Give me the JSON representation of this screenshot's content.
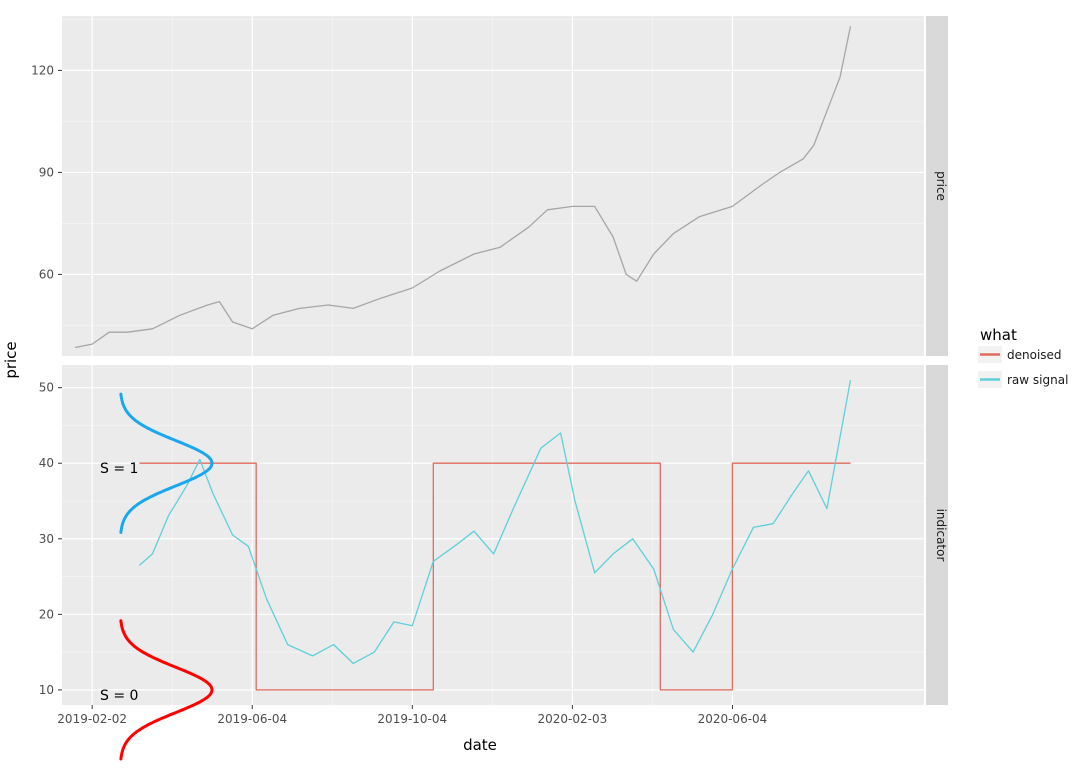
{
  "chart_data": {
    "type": "line",
    "xlabel": "date",
    "ylabel": "price",
    "x_ticks": [
      "2019-02-02",
      "2019-06-04",
      "2019-10-04",
      "2020-02-03",
      "2020-06-04"
    ],
    "xlim": [
      "2019-01-10",
      "2020-10-28"
    ],
    "grid": true,
    "legend": {
      "title": "what",
      "placement": "right",
      "entries": [
        {
          "label": "denoised",
          "color": "#e06b5f"
        },
        {
          "label": "raw signal",
          "color": "#5fcfda"
        }
      ]
    },
    "panels": [
      {
        "strip": "price",
        "ylim": [
          36,
          136
        ],
        "y_ticks": [
          60,
          90,
          120
        ],
        "series": [
          {
            "color": "#a6a6a6",
            "x": [
              "2019-01-20",
              "2019-02-02",
              "2019-02-15",
              "2019-03-01",
              "2019-03-20",
              "2019-04-10",
              "2019-05-01",
              "2019-05-10",
              "2019-05-20",
              "2019-06-04",
              "2019-06-20",
              "2019-07-10",
              "2019-08-01",
              "2019-08-20",
              "2019-09-10",
              "2019-10-04",
              "2019-10-25",
              "2019-11-20",
              "2019-12-10",
              "2020-01-01",
              "2020-01-15",
              "2020-02-03",
              "2020-02-20",
              "2020-03-05",
              "2020-03-15",
              "2020-03-23",
              "2020-04-05",
              "2020-04-20",
              "2020-05-10",
              "2020-06-04",
              "2020-06-25",
              "2020-07-10",
              "2020-07-28",
              "2020-08-05",
              "2020-08-15",
              "2020-08-25",
              "2020-09-02"
            ],
            "y": [
              38.5,
              39.5,
              43,
              43,
              44,
              48,
              51,
              52,
              46,
              44,
              48,
              50,
              51,
              50,
              53,
              56,
              61,
              66,
              68,
              74,
              79,
              80,
              80,
              71,
              60,
              58,
              66,
              72,
              77,
              80,
              86,
              90,
              94,
              98,
              108,
              118,
              133
            ]
          }
        ]
      },
      {
        "strip": "indicator",
        "ylim": [
          8,
          53
        ],
        "y_ticks": [
          10,
          20,
          30,
          40,
          50
        ],
        "series": [
          {
            "name": "denoised",
            "color": "#e06b5f",
            "x": [
              "2019-03-10",
              "2019-06-07",
              "2019-06-07",
              "2019-10-20",
              "2019-10-20",
              "2020-04-10",
              "2020-04-10",
              "2020-06-04",
              "2020-06-04",
              "2020-09-02"
            ],
            "y": [
              40,
              40,
              10,
              10,
              40,
              40,
              10,
              10,
              40,
              40
            ]
          },
          {
            "name": "raw signal",
            "color": "#5fcfda",
            "x": [
              "2019-03-10",
              "2019-03-20",
              "2019-04-01",
              "2019-04-15",
              "2019-04-25",
              "2019-05-05",
              "2019-05-20",
              "2019-06-01",
              "2019-06-15",
              "2019-07-01",
              "2019-07-20",
              "2019-08-05",
              "2019-08-20",
              "2019-09-05",
              "2019-09-20",
              "2019-10-04",
              "2019-10-20",
              "2019-11-05",
              "2019-11-20",
              "2019-12-05",
              "2019-12-20",
              "2020-01-10",
              "2020-01-25",
              "2020-02-05",
              "2020-02-20",
              "2020-03-05",
              "2020-03-20",
              "2020-04-05",
              "2020-04-20",
              "2020-05-05",
              "2020-05-20",
              "2020-06-04",
              "2020-06-20",
              "2020-07-05",
              "2020-07-20",
              "2020-08-01",
              "2020-08-15",
              "2020-09-02"
            ],
            "y": [
              26.5,
              28,
              33,
              37,
              40.5,
              36,
              30.5,
              29,
              22,
              16,
              14.5,
              16,
              13.5,
              15,
              19,
              18.5,
              27,
              29,
              31,
              28,
              34,
              42,
              44,
              35,
              25.5,
              28,
              30,
              26,
              18,
              15,
              20,
              26,
              31.5,
              32,
              36,
              39,
              34,
              51
            ]
          }
        ],
        "annotations": [
          {
            "label": "S = 1",
            "state_value": 40,
            "color": "#1aa7ec"
          },
          {
            "label": "S = 0",
            "state_value": 10,
            "color": "#ff0000"
          }
        ]
      }
    ]
  }
}
